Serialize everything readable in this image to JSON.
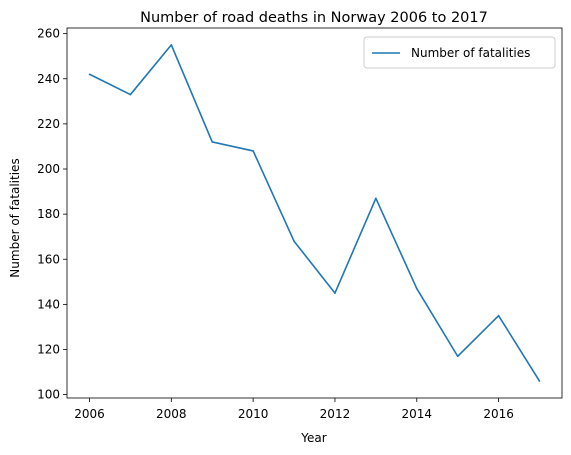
{
  "chart_data": {
    "type": "line",
    "title": "Number of road deaths in Norway 2006 to 2017",
    "xlabel": "Year",
    "ylabel": "Number of fatalities",
    "x": [
      2006,
      2007,
      2008,
      2009,
      2010,
      2011,
      2012,
      2013,
      2014,
      2015,
      2016,
      2017
    ],
    "series": [
      {
        "name": "Number of fatalities",
        "values": [
          242,
          233,
          255,
          212,
          208,
          168,
          145,
          187,
          147,
          117,
          135,
          106
        ],
        "color": "#1f77b4"
      }
    ],
    "xlim": [
      2005.45,
      2017.55
    ],
    "ylim": [
      98.5,
      262.5
    ],
    "xticks": [
      "2006",
      "2008",
      "2010",
      "2012",
      "2014",
      "2016"
    ],
    "yticks": [
      "100",
      "120",
      "140",
      "160",
      "180",
      "200",
      "220",
      "240",
      "260"
    ],
    "grid": false,
    "legend_position": "top-right"
  }
}
